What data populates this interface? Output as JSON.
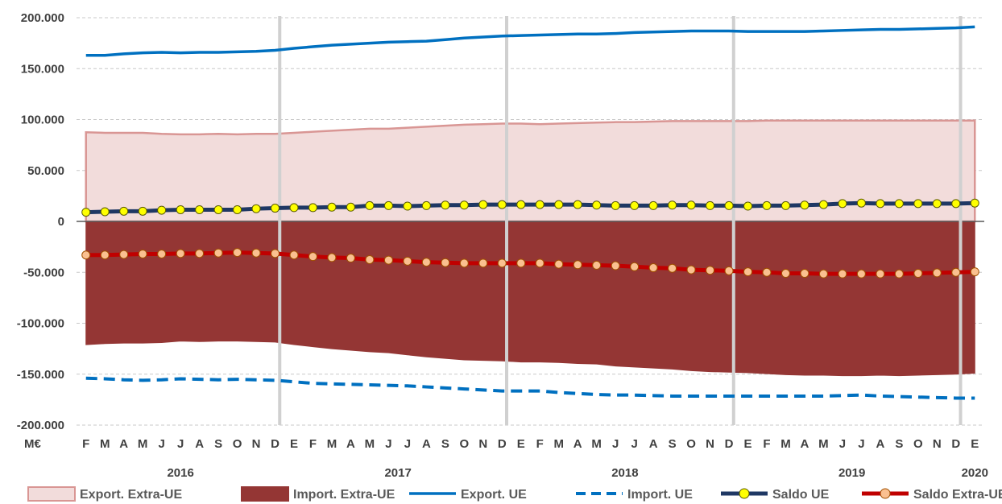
{
  "chart_data": {
    "type": "line",
    "unit_label": "M€",
    "ylim": [
      -200000,
      200000
    ],
    "y_ticks": [
      "200.000",
      "150.000",
      "100.000",
      "50.000",
      "0",
      "-50.000",
      "-100.000",
      "-150.000",
      "-200.000"
    ],
    "y_tick_values": [
      200000,
      150000,
      100000,
      50000,
      0,
      -50000,
      -100000,
      -150000,
      -200000
    ],
    "x_month_labels": [
      "F",
      "M",
      "A",
      "M",
      "J",
      "J",
      "A",
      "S",
      "O",
      "N",
      "D",
      "E",
      "F",
      "M",
      "A",
      "M",
      "J",
      "J",
      "A",
      "S",
      "O",
      "N",
      "D",
      "E",
      "F",
      "M",
      "A",
      "M",
      "J",
      "J",
      "A",
      "S",
      "O",
      "N",
      "D",
      "E",
      "F",
      "M",
      "A",
      "M",
      "J",
      "J",
      "A",
      "S",
      "O",
      "N",
      "D",
      "E"
    ],
    "years": [
      {
        "label": "2016",
        "start": 0,
        "end": 10
      },
      {
        "label": "2017",
        "start": 11,
        "end": 22
      },
      {
        "label": "2018",
        "start": 23,
        "end": 34
      },
      {
        "label": "2019",
        "start": 35,
        "end": 46
      },
      {
        "label": "2020",
        "start": 47,
        "end": 47
      }
    ],
    "year_separators_after": [
      10,
      22,
      34,
      46
    ],
    "grid": "horizontal dashed",
    "legend_position": "bottom",
    "series": [
      {
        "name": "Export. Extra-UE",
        "kind": "area",
        "color": "#f2dcdb",
        "edge": "#d99694",
        "values": [
          87500,
          87000,
          87000,
          87000,
          86000,
          85500,
          85500,
          86000,
          85500,
          86000,
          86000,
          87000,
          88000,
          89000,
          90000,
          91000,
          91000,
          92000,
          93000,
          94000,
          95000,
          95500,
          96000,
          96000,
          95500,
          96000,
          96500,
          97000,
          97500,
          97500,
          98000,
          98500,
          98500,
          98500,
          98500,
          98500,
          99000,
          99000,
          99000,
          99000,
          99000,
          99000,
          99000,
          99000,
          99000,
          99000,
          99000,
          99000
        ]
      },
      {
        "name": "Import. Extra-UE",
        "kind": "area",
        "color": "#943634",
        "values": [
          -121000,
          -120000,
          -119500,
          -119500,
          -119000,
          -117500,
          -118000,
          -117500,
          -117500,
          -118000,
          -118500,
          -121000,
          -123000,
          -125000,
          -126500,
          -128000,
          -129000,
          -131000,
          -133000,
          -134500,
          -136000,
          -136500,
          -137000,
          -138000,
          -138000,
          -138500,
          -139500,
          -140000,
          -142000,
          -143000,
          -144000,
          -145000,
          -146500,
          -147500,
          -148000,
          -148500,
          -149500,
          -150500,
          -151000,
          -151000,
          -151500,
          -151500,
          -151000,
          -151500,
          -151000,
          -150500,
          -150000,
          -149000
        ]
      },
      {
        "name": "Export. UE",
        "kind": "line",
        "color": "#0070c0",
        "values": [
          163000,
          163000,
          164500,
          165500,
          166000,
          165500,
          166000,
          166000,
          166500,
          167000,
          168000,
          170000,
          171500,
          173000,
          174000,
          175000,
          176000,
          176500,
          177000,
          178500,
          180000,
          181000,
          182000,
          182500,
          183000,
          183500,
          184000,
          184000,
          184500,
          185500,
          186000,
          186500,
          187000,
          187000,
          187000,
          186500,
          186500,
          186500,
          186500,
          187000,
          187500,
          188000,
          188500,
          188500,
          189000,
          189500,
          190000,
          191000
        ]
      },
      {
        "name": "Import. UE",
        "kind": "dashed",
        "color": "#0070c0",
        "values": [
          -154000,
          -154500,
          -155500,
          -156000,
          -155500,
          -154500,
          -155000,
          -155500,
          -155000,
          -155500,
          -156000,
          -157500,
          -159000,
          -159500,
          -160000,
          -160500,
          -161000,
          -161500,
          -162500,
          -163500,
          -164500,
          -165500,
          -166500,
          -166500,
          -166500,
          -168000,
          -169000,
          -170000,
          -170500,
          -170500,
          -171000,
          -171500,
          -171500,
          -171500,
          -171500,
          -171500,
          -171500,
          -171500,
          -171500,
          -171500,
          -171000,
          -170500,
          -171500,
          -172000,
          -172500,
          -173000,
          -173500,
          -173500
        ]
      },
      {
        "name": "Saldo UE",
        "kind": "marker-line",
        "color": "#1f3864",
        "marker_fill": "#ffff00",
        "values": [
          9000,
          9500,
          10000,
          10000,
          11000,
          11500,
          11500,
          11500,
          11500,
          12500,
          13000,
          13500,
          13500,
          14000,
          14000,
          15500,
          15500,
          15000,
          15500,
          16000,
          16000,
          16500,
          16500,
          16500,
          16500,
          16500,
          16500,
          16000,
          15500,
          15500,
          15500,
          16000,
          16000,
          15500,
          15500,
          15000,
          15500,
          15500,
          16000,
          16500,
          17500,
          18000,
          17500,
          17500,
          17500,
          17500,
          17500,
          18000
        ]
      },
      {
        "name": "Saldo Extra-UE",
        "kind": "marker-line",
        "color": "#c00000",
        "marker_fill": "#fac090",
        "values": [
          -33000,
          -33000,
          -32500,
          -32000,
          -32000,
          -31500,
          -31500,
          -31000,
          -30500,
          -31000,
          -31500,
          -33000,
          -34500,
          -35500,
          -36000,
          -37500,
          -38000,
          -39000,
          -40000,
          -40500,
          -41000,
          -41000,
          -41000,
          -41000,
          -41000,
          -42000,
          -42500,
          -43000,
          -43500,
          -44500,
          -45500,
          -46000,
          -47500,
          -48000,
          -48500,
          -49500,
          -50000,
          -51000,
          -51000,
          -51500,
          -51500,
          -51500,
          -51500,
          -51500,
          -51000,
          -50500,
          -50000,
          -49500
        ]
      }
    ]
  }
}
